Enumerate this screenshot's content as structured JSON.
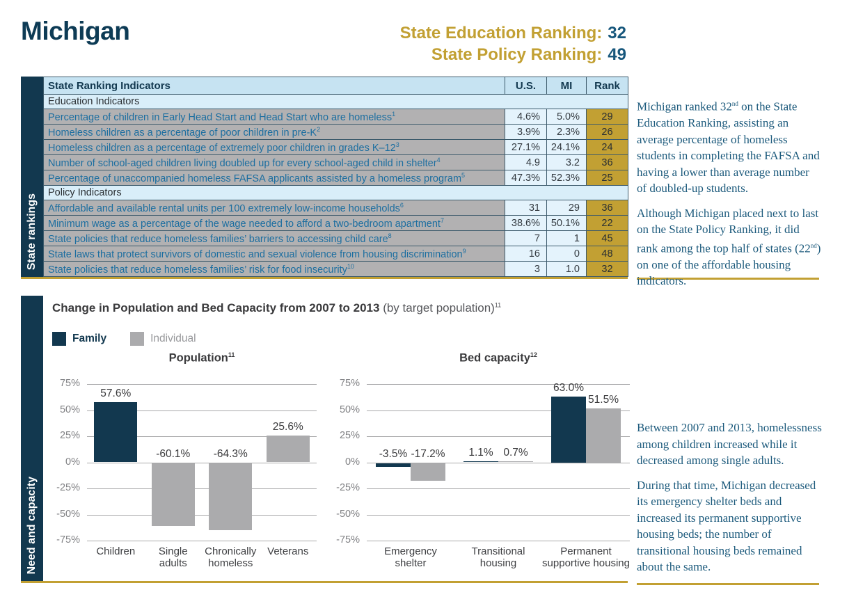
{
  "page": {
    "title": "Michigan",
    "rankings": [
      {
        "label": "State Education Ranking:",
        "value": "32"
      },
      {
        "label": "State Policy Ranking:",
        "value": "49"
      }
    ]
  },
  "sidebars": {
    "rankings_label": "State rankings",
    "capacity_label": "Need and capacity"
  },
  "table": {
    "header": {
      "indicator": "State Ranking Indicators",
      "us": "U.S.",
      "mi": "MI",
      "rank": "Rank"
    },
    "sections": [
      {
        "title": "Education Indicators",
        "rows": [
          {
            "label": "Percentage of children in Early Head Start and Head Start who are homeless",
            "sup": "1",
            "us": "4.6%",
            "mi": "5.0%",
            "rank": "29"
          },
          {
            "label": "Homeless children as a percentage of poor children in pre-K",
            "sup": "2",
            "us": "3.9%",
            "mi": "2.3%",
            "rank": "26"
          },
          {
            "label": "Homeless children as a percentage of extremely poor children in grades K–12",
            "sup": "3",
            "us": "27.1%",
            "mi": "24.1%",
            "rank": "24"
          },
          {
            "label": "Number of school-aged children living doubled up for every school-aged child in shelter",
            "sup": "4",
            "us": "4.9",
            "mi": "3.2",
            "rank": "36"
          },
          {
            "label": "Percentage of unaccompanied homeless FAFSA applicants assisted by a homeless program",
            "sup": "5",
            "us": "47.3%",
            "mi": "52.3%",
            "rank": "25"
          }
        ]
      },
      {
        "title": "Policy Indicators",
        "rows": [
          {
            "label": "Affordable and available rental units per 100 extremely low-income households",
            "sup": "6",
            "us": "31",
            "mi": "29",
            "rank": "36"
          },
          {
            "label": "Minimum wage as a percentage of the wage needed to afford a two-bedroom apartment",
            "sup": "7",
            "us": "38.6%",
            "mi": "50.1%",
            "rank": "22"
          },
          {
            "label": "State policies that reduce homeless families’ barriers to accessing child care",
            "sup": "8",
            "us": "7",
            "mi": "1",
            "rank": "45"
          },
          {
            "label": "State laws that protect survivors of domestic and sexual violence from housing discrimination",
            "sup": "9",
            "us": "16",
            "mi": "0",
            "rank": "48"
          },
          {
            "label": "State policies that reduce homeless families’ risk for food insecurity",
            "sup": "10",
            "us": "3",
            "mi": "1.0",
            "rank": "32"
          }
        ]
      }
    ]
  },
  "commentary_top": {
    "paragraphs": [
      [
        {
          "t": "Michigan ranked 32"
        },
        {
          "t": "nd",
          "sup": true
        },
        {
          "t": " on the State Education Ranking, assisting an average percentage of homeless students in completing the FAFSA and having a lower than average number of doubled-up students."
        }
      ],
      [
        {
          "t": "Although Michigan placed next to last on the State Policy Ranking, it did rank among the top half of states (22"
        },
        {
          "t": "nd",
          "sup": true
        },
        {
          "t": ") on one of the affordable housing indicators."
        }
      ]
    ]
  },
  "commentary_bottom": {
    "paragraphs": [
      [
        {
          "t": "Between 2007 and 2013, homelessness among children increased while it decreased among single adults."
        }
      ],
      [
        {
          "t": "During that time, Michigan decreased its emergency shelter beds and increased its permanent supportive housing beds; the number of transitional housing beds remained about the same."
        }
      ]
    ]
  },
  "chart_section": {
    "title": "Change in Population and Bed Capacity from 2007 to 2013",
    "subtitle": "(by target population)",
    "subtitle_sup": "11",
    "legend": [
      {
        "label": "Family",
        "color": "#12384F"
      },
      {
        "label": "Individual",
        "color": "#ABABAD"
      }
    ]
  },
  "chart_data": [
    {
      "type": "bar",
      "title": "Population",
      "title_sup": "11",
      "ylim": [
        -75,
        75
      ],
      "ytick_step": 25,
      "ytick_format": "percent",
      "grid": true,
      "groups": [
        {
          "category": "Children",
          "lines": [
            "Children"
          ],
          "bars": [
            {
              "series": "Family",
              "value": 57.6
            }
          ]
        },
        {
          "category": "Single adults",
          "lines": [
            "Single",
            "adults"
          ],
          "bars": [
            {
              "series": "Individual",
              "value": -60.1
            }
          ]
        },
        {
          "category": "Chronically homeless",
          "lines": [
            "Chronically",
            "homeless"
          ],
          "bars": [
            {
              "series": "Individual",
              "value": -64.3
            }
          ]
        },
        {
          "category": "Veterans",
          "lines": [
            "Veterans"
          ],
          "bars": [
            {
              "series": "Individual",
              "value": 25.6
            }
          ]
        }
      ]
    },
    {
      "type": "bar",
      "title": "Bed capacity",
      "title_sup": "12",
      "ylim": [
        -75,
        75
      ],
      "ytick_step": 25,
      "ytick_format": "percent",
      "grid": true,
      "groups": [
        {
          "category": "Emergency shelter",
          "lines": [
            "Emergency",
            "shelter"
          ],
          "bars": [
            {
              "series": "Family",
              "value": -3.5
            },
            {
              "series": "Individual",
              "value": -17.2
            }
          ]
        },
        {
          "category": "Transitional housing",
          "lines": [
            "Transitional",
            "housing"
          ],
          "bars": [
            {
              "series": "Family",
              "value": 1.1
            },
            {
              "series": "Individual",
              "value": 0.7
            }
          ]
        },
        {
          "category": "Permanent supportive housing",
          "lines": [
            "Permanent",
            "supportive housing"
          ],
          "bars": [
            {
              "series": "Family",
              "value": 63.0
            },
            {
              "series": "Individual",
              "value": 51.5
            }
          ]
        }
      ]
    }
  ],
  "colors": {
    "navy": "#12384F",
    "title_navy": "#0D3B55",
    "gold": "#C2A033",
    "family_bar": "#12384F",
    "individual_bar": "#ABABAD",
    "table_header_bg": "#C6E3F2",
    "table_section_bg": "#D9EEF9",
    "table_value_bg": "#E4F3FC",
    "table_label_bg": "#B2B1B2",
    "table_label_text": "#1C6EA0",
    "commentary_text": "#1C5A7C"
  }
}
